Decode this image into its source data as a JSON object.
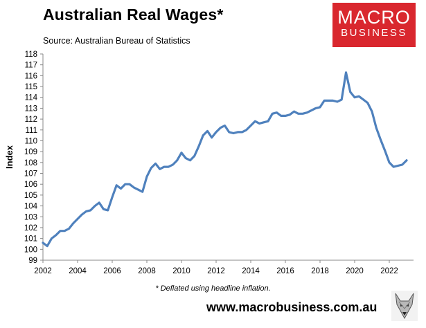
{
  "header": {
    "title": "Australian Real Wages*",
    "source": "Source: Australian Bureau of Statistics"
  },
  "logo": {
    "line1": "MACRO",
    "line2": "BUSINESS",
    "color": "#d9272e"
  },
  "footer": {
    "footnote": "* Deflated using headline inflation.",
    "website": "www.macrobusiness.com.au",
    "mascot_icon": "wolf-icon"
  },
  "chart_data": {
    "type": "line",
    "ylabel": "Index",
    "xlabel": "",
    "xlim": [
      2002,
      2023.4
    ],
    "ylim": [
      99,
      118
    ],
    "x_ticks": [
      2002,
      2004,
      2006,
      2008,
      2010,
      2012,
      2014,
      2016,
      2018,
      2020,
      2022
    ],
    "y_ticks": [
      99,
      100,
      101,
      102,
      103,
      104,
      105,
      106,
      107,
      108,
      109,
      110,
      111,
      112,
      113,
      114,
      115,
      116,
      117,
      118
    ],
    "grid": false,
    "line_color": "#4f81bd",
    "series": [
      {
        "name": "",
        "x": [
          2002.0,
          2002.25,
          2002.5,
          2002.75,
          2003.0,
          2003.25,
          2003.5,
          2003.75,
          2004.0,
          2004.25,
          2004.5,
          2004.75,
          2005.0,
          2005.25,
          2005.5,
          2005.75,
          2006.0,
          2006.25,
          2006.5,
          2006.75,
          2007.0,
          2007.25,
          2007.5,
          2007.75,
          2008.0,
          2008.25,
          2008.5,
          2008.75,
          2009.0,
          2009.25,
          2009.5,
          2009.75,
          2010.0,
          2010.25,
          2010.5,
          2010.75,
          2011.0,
          2011.25,
          2011.5,
          2011.75,
          2012.0,
          2012.25,
          2012.5,
          2012.75,
          2013.0,
          2013.25,
          2013.5,
          2013.75,
          2014.0,
          2014.25,
          2014.5,
          2014.75,
          2015.0,
          2015.25,
          2015.5,
          2015.75,
          2016.0,
          2016.25,
          2016.5,
          2016.75,
          2017.0,
          2017.25,
          2017.5,
          2017.75,
          2018.0,
          2018.25,
          2018.5,
          2018.75,
          2019.0,
          2019.25,
          2019.5,
          2019.75,
          2020.0,
          2020.25,
          2020.5,
          2020.75,
          2021.0,
          2021.25,
          2021.5,
          2021.75,
          2022.0,
          2022.25,
          2022.5,
          2022.75,
          2023.0
        ],
        "y": [
          100.6,
          100.3,
          101.0,
          101.3,
          101.7,
          101.7,
          101.9,
          102.4,
          102.8,
          103.2,
          103.5,
          103.6,
          104.0,
          104.3,
          103.7,
          103.6,
          104.8,
          105.9,
          105.6,
          106.0,
          106.0,
          105.7,
          105.5,
          105.3,
          106.7,
          107.5,
          107.9,
          107.4,
          107.6,
          107.6,
          107.8,
          108.2,
          108.9,
          108.4,
          108.2,
          108.6,
          109.5,
          110.5,
          110.9,
          110.3,
          110.8,
          111.2,
          111.4,
          110.8,
          110.7,
          110.8,
          110.8,
          111.0,
          111.4,
          111.8,
          111.6,
          111.7,
          111.8,
          112.5,
          112.6,
          112.3,
          112.3,
          112.4,
          112.7,
          112.5,
          112.5,
          112.6,
          112.8,
          113.0,
          113.1,
          113.7,
          113.7,
          113.7,
          113.6,
          113.8,
          116.3,
          114.5,
          114.0,
          114.1,
          113.8,
          113.5,
          112.7,
          111.2,
          110.1,
          109.1,
          108.0,
          107.6,
          107.7,
          107.8,
          108.2
        ]
      }
    ]
  }
}
